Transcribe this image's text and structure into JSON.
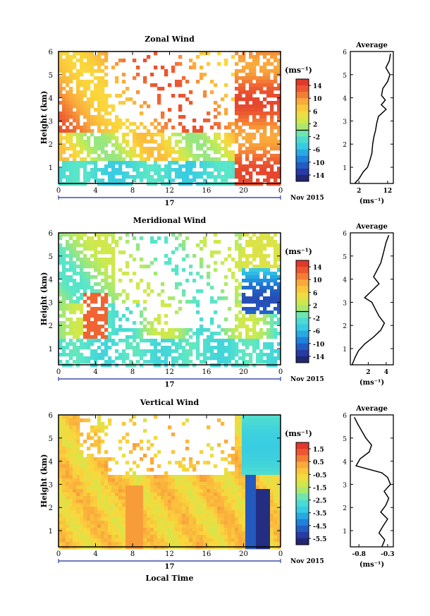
{
  "chart_data": [
    {
      "type": "heatmap",
      "title": "Zonal Wind",
      "ylabel": "Height (km)",
      "xticks": [
        "0",
        "4",
        "8",
        "12",
        "16",
        "20",
        "0"
      ],
      "ytick_labels": [
        "1",
        "2",
        "3",
        "4",
        "5",
        "6"
      ],
      "xlim": [
        0,
        24
      ],
      "ylim": [
        0.3,
        6
      ],
      "date_label": "17",
      "date_suffix": "Nov 2015",
      "colorbar": {
        "unit": "(ms⁻¹)",
        "ticks": [
          "14",
          "10",
          "6",
          "2",
          "-2",
          "-6",
          "-10",
          "-14"
        ],
        "range": [
          -16,
          16
        ]
      },
      "profile": {
        "title": "Average",
        "xlabel": "(ms⁻¹)",
        "xticks": [
          "2",
          "12"
        ],
        "xlim": [
          -1,
          14
        ],
        "height": [
          0.3,
          0.5,
          0.8,
          1.0,
          1.3,
          1.6,
          2.0,
          2.3,
          2.6,
          2.9,
          3.2,
          3.5,
          3.7,
          3.9,
          4.1,
          4.4,
          4.7,
          5.0,
          5.3,
          5.6,
          5.9
        ],
        "values": [
          0.5,
          2.0,
          3.5,
          5.0,
          5.8,
          6.5,
          6.8,
          7.2,
          7.8,
          8.2,
          8.8,
          11.5,
          9.8,
          11.2,
          9.9,
          10.3,
          12.0,
          12.8,
          11.4,
          12.6,
          13.0
        ]
      }
    },
    {
      "type": "heatmap",
      "title": "Meridional Wind",
      "ylabel": "Height (km)",
      "xticks": [
        "0",
        "4",
        "8",
        "12",
        "16",
        "20",
        "0"
      ],
      "ytick_labels": [
        "1",
        "2",
        "3",
        "4",
        "5",
        "6"
      ],
      "xlim": [
        0,
        24
      ],
      "ylim": [
        0.3,
        6
      ],
      "date_label": "17",
      "date_suffix": "Nov 2015",
      "colorbar": {
        "unit": "(ms⁻¹)",
        "ticks": [
          "14",
          "10",
          "6",
          "2",
          "-2",
          "-6",
          "-10",
          "-14"
        ],
        "range": [
          -16,
          16
        ]
      },
      "profile": {
        "title": "Average",
        "xlabel": "(ms⁻¹)",
        "xticks": [
          "2",
          "4"
        ],
        "xlim": [
          0,
          4.8
        ],
        "height": [
          0.3,
          0.6,
          0.9,
          1.2,
          1.5,
          1.8,
          2.1,
          2.4,
          2.7,
          3.0,
          3.2,
          3.5,
          3.8,
          4.1,
          4.4,
          4.7,
          5.0,
          5.3,
          5.6,
          5.9
        ],
        "values": [
          0.2,
          0.5,
          0.9,
          1.6,
          2.6,
          3.4,
          3.8,
          3.2,
          2.8,
          2.4,
          1.6,
          2.4,
          3.2,
          2.6,
          3.0,
          3.4,
          3.6,
          3.8,
          4.0,
          4.3
        ]
      }
    },
    {
      "type": "heatmap",
      "title": "Vertical Wind",
      "ylabel": "Height (km)",
      "xlabel": "Local Time",
      "xticks": [
        "0",
        "4",
        "8",
        "12",
        "16",
        "20",
        "0"
      ],
      "ytick_labels": [
        "1",
        "2",
        "3",
        "4",
        "5",
        "6"
      ],
      "xlim": [
        0,
        24
      ],
      "ylim": [
        0.3,
        6
      ],
      "date_label": "17",
      "date_suffix": "Nov 2015",
      "colorbar": {
        "unit": "(ms⁻¹)",
        "ticks": [
          "1.5",
          "0.5",
          "-0.5",
          "-1.5",
          "-2.5",
          "-3.5",
          "-4.5",
          "-5.5"
        ],
        "range": [
          -6,
          2
        ]
      },
      "profile": {
        "title": "Average",
        "xlabel": "(ms⁻¹)",
        "xticks": [
          "-0.8",
          "-0.3"
        ],
        "xlim": [
          -0.95,
          -0.2
        ],
        "height": [
          0.3,
          0.6,
          0.9,
          1.2,
          1.5,
          1.8,
          2.1,
          2.4,
          2.7,
          3.0,
          3.3,
          3.5,
          3.8,
          4.1,
          4.4,
          4.7,
          5.0,
          5.3,
          5.6,
          5.9
        ],
        "values": [
          -0.4,
          -0.35,
          -0.45,
          -0.38,
          -0.3,
          -0.42,
          -0.33,
          -0.28,
          -0.36,
          -0.25,
          -0.3,
          -0.4,
          -0.85,
          -0.78,
          -0.62,
          -0.58,
          -0.68,
          -0.75,
          -0.82,
          -0.88
        ]
      }
    }
  ]
}
